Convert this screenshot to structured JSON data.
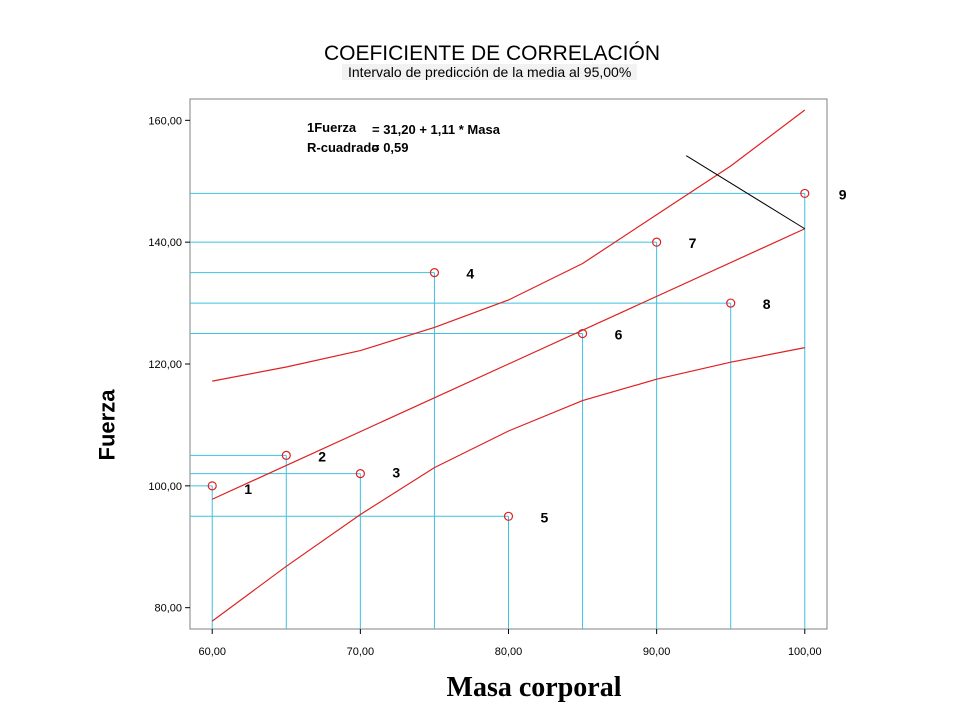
{
  "chart_data": {
    "type": "scatter",
    "title": "COEFICIENTE DE CORRELACIÓN",
    "subtitle": "Intervalo de predicción de la media al 95,00%",
    "xlabel": "Masa corporal",
    "ylabel": "Fuerza",
    "xlim": [
      58.5,
      101.5
    ],
    "ylim": [
      76.5,
      163.5
    ],
    "x_ticks": [
      60,
      70,
      80,
      90,
      100
    ],
    "y_ticks": [
      80,
      100,
      120,
      140,
      160
    ],
    "x_tick_labels": [
      "60,00",
      "70,00",
      "80,00",
      "90,00",
      "100,00"
    ],
    "y_tick_labels": [
      "80,00",
      "100,00",
      "120,00",
      "140,00",
      "160,00"
    ],
    "points": [
      {
        "label": "1",
        "x": 60,
        "y": 100
      },
      {
        "label": "2",
        "x": 65,
        "y": 105
      },
      {
        "label": "3",
        "x": 70,
        "y": 102
      },
      {
        "label": "4",
        "x": 75,
        "y": 135
      },
      {
        "label": "5",
        "x": 80,
        "y": 95
      },
      {
        "label": "6",
        "x": 85,
        "y": 125
      },
      {
        "label": "7",
        "x": 90,
        "y": 140
      },
      {
        "label": "8",
        "x": 95,
        "y": 130
      },
      {
        "label": "9",
        "x": 100,
        "y": 148
      }
    ],
    "regression": {
      "intercept": 31.2,
      "slope": 1.11
    },
    "upper_band": [
      [
        60,
        117.2
      ],
      [
        65,
        119.5
      ],
      [
        70,
        122.2
      ],
      [
        75,
        126.0
      ],
      [
        80,
        130.5
      ],
      [
        85,
        136.5
      ],
      [
        90,
        144.5
      ],
      [
        95,
        152.5
      ],
      [
        100,
        161.7
      ]
    ],
    "lower_band": [
      [
        60,
        77.8
      ],
      [
        65,
        86.8
      ],
      [
        70,
        95.3
      ],
      [
        75,
        103.0
      ],
      [
        80,
        109.0
      ],
      [
        85,
        114.0
      ],
      [
        90,
        117.5
      ],
      [
        95,
        120.3
      ],
      [
        100,
        122.7
      ]
    ],
    "annotation_lines": [
      {
        "name": "Fuerza",
        "label": "1Fuerza",
        "value": "= 31,20 + 1,11 * Masa"
      },
      {
        "name": "R-cuadrado",
        "label": "R-cuadrado",
        "value": "= 0,59"
      }
    ],
    "colors": {
      "fit": "#e02020",
      "guide": "#40c0e0",
      "marker": "#e02020",
      "plot_bg": "#ffffff",
      "frame": "#808080"
    }
  }
}
